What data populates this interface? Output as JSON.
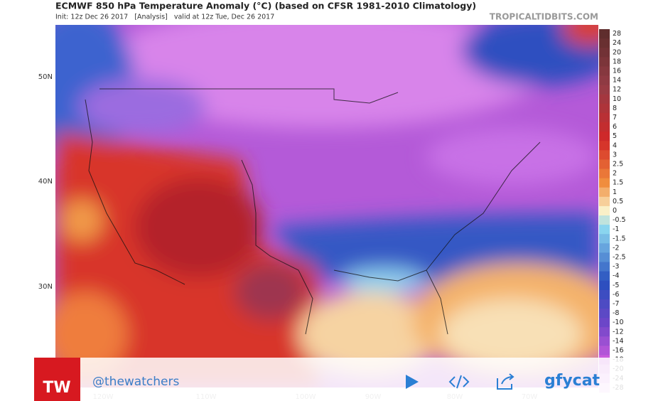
{
  "header": {
    "title": "ECMWF 850 hPa Temperature Anomaly (°C) (based on CFSR 1981-2010 Climatology)",
    "subtitle": "Init: 12z Dec 26 2017   [Analysis]   valid at 12z Tue, Dec 26 2017",
    "site": "TROPICALTIDBITS.COM"
  },
  "map": {
    "lat_labels": [
      "50N",
      "40N",
      "30N"
    ],
    "lon_labels": [
      "120W",
      "110W",
      "100W",
      "90W",
      "80W",
      "70W"
    ]
  },
  "colorbar": {
    "labels": [
      "28",
      "24",
      "20",
      "18",
      "16",
      "14",
      "12",
      "10",
      "8",
      "7",
      "6",
      "5",
      "4",
      "3",
      "2.5",
      "2",
      "1.5",
      "1",
      "0.5",
      "0",
      "-0.5",
      "-1",
      "-1.5",
      "-2",
      "-2.5",
      "-3",
      "-4",
      "-5",
      "-6",
      "-7",
      "-8",
      "-10",
      "-12",
      "-14",
      "-16",
      "-18",
      "-20",
      "-24",
      "-28"
    ]
  },
  "overlay": {
    "logo": "TW",
    "handle": "@thewatchers",
    "brand": "gfycat"
  }
}
